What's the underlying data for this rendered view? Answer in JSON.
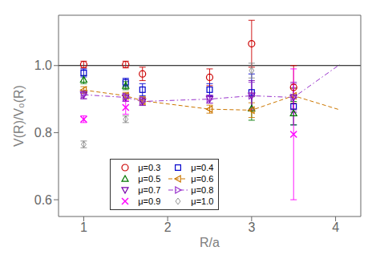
{
  "chart_data": {
    "type": "scatter",
    "xlabel": "R/a",
    "ylabel": "V(R)/V₀(R)",
    "xlim": [
      0.7,
      4.3
    ],
    "ylim": [
      0.55,
      1.15
    ],
    "xticks": [
      1,
      2,
      3,
      4
    ],
    "yticks": [
      0.6,
      0.8,
      {
        "value": 1.0,
        "label": "1.0"
      }
    ],
    "grid": false,
    "legend": "lower left",
    "reference_line": 1.0,
    "series": [
      {
        "name": "μ=0.3",
        "color": "#cc0000",
        "marker": "circle",
        "x": [
          1.0,
          1.5,
          1.7,
          2.5,
          3.0,
          3.5
        ],
        "values": [
          1.003,
          1.003,
          0.975,
          0.965,
          1.065,
          0.935
        ],
        "yerr": [
          0.01,
          0.01,
          0.02,
          0.025,
          0.07,
          0.065
        ]
      },
      {
        "name": "μ=0.4",
        "color": "#0000cc",
        "marker": "square",
        "x": [
          1.0,
          1.5,
          1.7,
          2.5,
          3.0,
          3.5
        ],
        "values": [
          0.978,
          0.95,
          0.928,
          0.928,
          0.92,
          0.878
        ],
        "yerr": [
          0.012,
          0.012,
          0.018,
          0.018,
          0.055,
          0.055
        ]
      },
      {
        "name": "μ=0.5",
        "color": "#007700",
        "marker": "triangle_up",
        "x": [
          1.0,
          1.5,
          3.0,
          3.5
        ],
        "values": [
          0.958,
          0.94,
          0.872,
          0.858
        ],
        "yerr": [
          0.012,
          0.012,
          0.035,
          0.035
        ]
      },
      {
        "name": "μ=0.6",
        "color": "#cc7700",
        "marker": "triangle_left",
        "line_style": "dashed",
        "x": [
          1.0,
          1.5,
          1.7,
          2.5,
          3.0,
          3.5
        ],
        "values": [
          0.927,
          0.91,
          0.895,
          0.87,
          0.867,
          0.91
        ],
        "yerr": [
          0.01,
          0.01,
          0.012,
          0.012,
          0.022,
          0.022
        ],
        "line_x": [
          1.0,
          1.5,
          1.7,
          2.5,
          3.0,
          3.5,
          4.05
        ],
        "line_values": [
          0.927,
          0.91,
          0.895,
          0.87,
          0.867,
          0.91,
          0.868
        ]
      },
      {
        "name": "μ=0.7",
        "color": "#7700aa",
        "marker": "triangle_down",
        "x": [
          1.0,
          1.5,
          1.7,
          2.5,
          3.0,
          3.5
        ],
        "values": [
          0.913,
          0.905,
          0.893,
          0.9,
          0.91,
          0.905
        ],
        "yerr": [
          0.012,
          0.012,
          0.012,
          0.012,
          0.045,
          0.045
        ]
      },
      {
        "name": "μ=0.8",
        "color": "#9933cc",
        "marker": "triangle_right",
        "line_style": "dashdot",
        "x": [
          1.0,
          1.5,
          1.7,
          2.5,
          3.0,
          3.5
        ],
        "values": [
          0.913,
          0.905,
          0.893,
          0.9,
          0.91,
          0.905
        ],
        "yerr": [
          0.012,
          0.012,
          0.012,
          0.012,
          0.04,
          0.04
        ],
        "line_x": [
          1.0,
          1.5,
          1.7,
          2.5,
          3.0,
          3.5,
          4.05
        ],
        "line_values": [
          0.913,
          0.905,
          0.893,
          0.9,
          0.91,
          0.905,
          1.003
        ]
      },
      {
        "name": "μ=0.9",
        "color": "#ff00ff",
        "marker": "x",
        "x": [
          1.0,
          1.5,
          3.5
        ],
        "values": [
          0.84,
          0.875,
          0.795
        ],
        "yerr": [
          0.01,
          0.02,
          0.195
        ]
      },
      {
        "name": "μ=1.0",
        "color": "#888888",
        "marker": "diamond",
        "x": [
          1.0,
          1.5,
          3.0
        ],
        "values": [
          0.765,
          0.84,
          0.985
        ],
        "yerr": [
          0.01,
          0.01,
          0.022
        ]
      }
    ]
  }
}
